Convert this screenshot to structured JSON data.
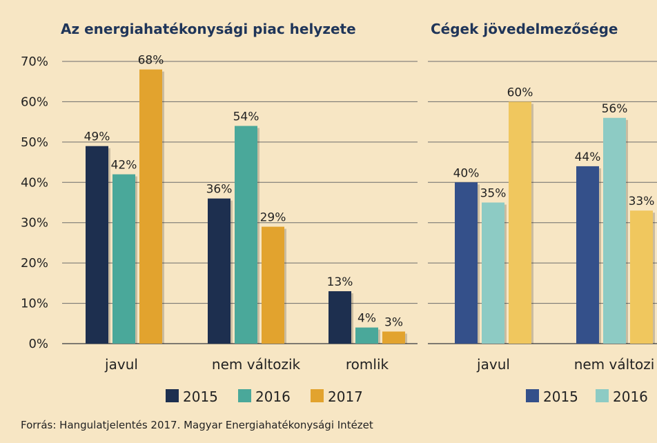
{
  "source": "Forrás: Hangulatjelentés 2017. Magyar Energiahatékonysági Intézet",
  "chart_data": [
    {
      "type": "bar",
      "title": "Az energiahatékonysági piac helyzete",
      "categories": [
        "javul",
        "nem változik",
        "romlik"
      ],
      "series": [
        {
          "name": "2015",
          "color": "#1d2f4f",
          "values": [
            49,
            36,
            13
          ]
        },
        {
          "name": "2016",
          "color": "#4aa89a",
          "values": [
            42,
            54,
            4
          ]
        },
        {
          "name": "2017",
          "color": "#e2a32e",
          "values": [
            68,
            29,
            3
          ]
        }
      ],
      "data_labels": [
        [
          "49%",
          "36%",
          "13%"
        ],
        [
          "42%",
          "54%",
          "4%"
        ],
        [
          "68%",
          "29%",
          "3%"
        ]
      ],
      "y_ticks": [
        "0%",
        "10%",
        "20%",
        "30%",
        "40%",
        "50%",
        "60%",
        "70%"
      ],
      "ylim": [
        0,
        70
      ],
      "grid": true,
      "legend": "bottom"
    },
    {
      "type": "bar",
      "title": "Cégek jövedelmezősége",
      "categories": [
        "javul",
        "nem változi"
      ],
      "series": [
        {
          "name": "2015",
          "color": "#34508a",
          "values": [
            40,
            44
          ]
        },
        {
          "name": "2016",
          "color": "#8dcbc4",
          "values": [
            35,
            56
          ]
        },
        {
          "name": "",
          "color": "#f0c75e",
          "values": [
            60,
            33
          ]
        }
      ],
      "data_labels": [
        [
          "40%",
          "44%"
        ],
        [
          "35%",
          "56%"
        ],
        [
          "60%",
          "33%"
        ]
      ],
      "ylim": [
        0,
        70
      ],
      "grid": true,
      "legend": "bottom"
    }
  ]
}
